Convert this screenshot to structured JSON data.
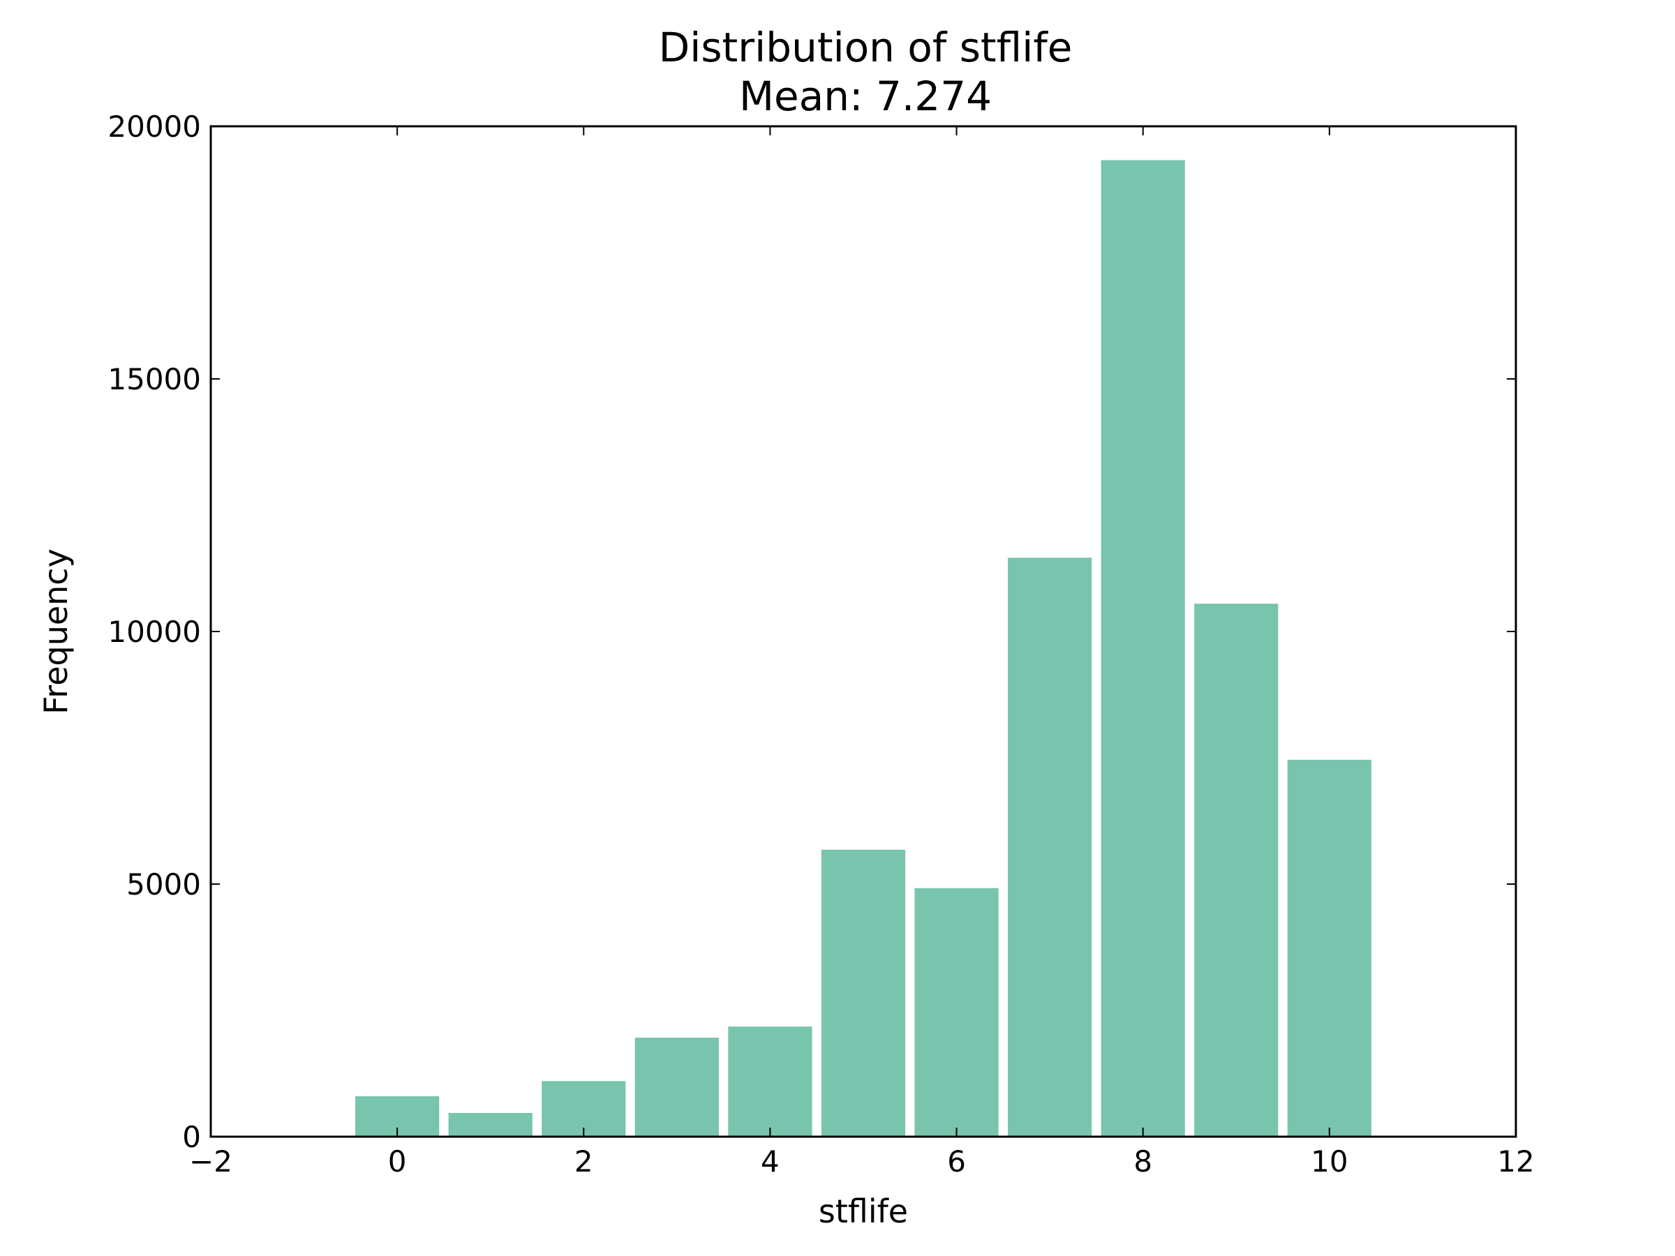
{
  "chart_data": {
    "type": "bar",
    "title": "Distribution of stflife",
    "subtitle": "Mean: 7.274",
    "xlabel": "stflife",
    "ylabel": "Frequency",
    "xlim": [
      -2,
      12
    ],
    "ylim": [
      0,
      20000
    ],
    "xticks": [
      -2,
      0,
      2,
      4,
      6,
      8,
      10,
      12
    ],
    "xtick_labels": [
      "−2",
      "0",
      "2",
      "4",
      "6",
      "8",
      "10",
      "12"
    ],
    "yticks": [
      0,
      5000,
      10000,
      15000,
      20000
    ],
    "ytick_labels": [
      "0",
      "5000",
      "10000",
      "15000",
      "20000"
    ],
    "bar_width": 0.9,
    "x": [
      0,
      1,
      2,
      3,
      4,
      5,
      6,
      7,
      8,
      9,
      10
    ],
    "values": [
      800,
      470,
      1100,
      1960,
      2180,
      5680,
      4920,
      11460,
      19330,
      10550,
      7460
    ],
    "bar_color": "#78c4ad",
    "grid": false,
    "legend": "none"
  }
}
